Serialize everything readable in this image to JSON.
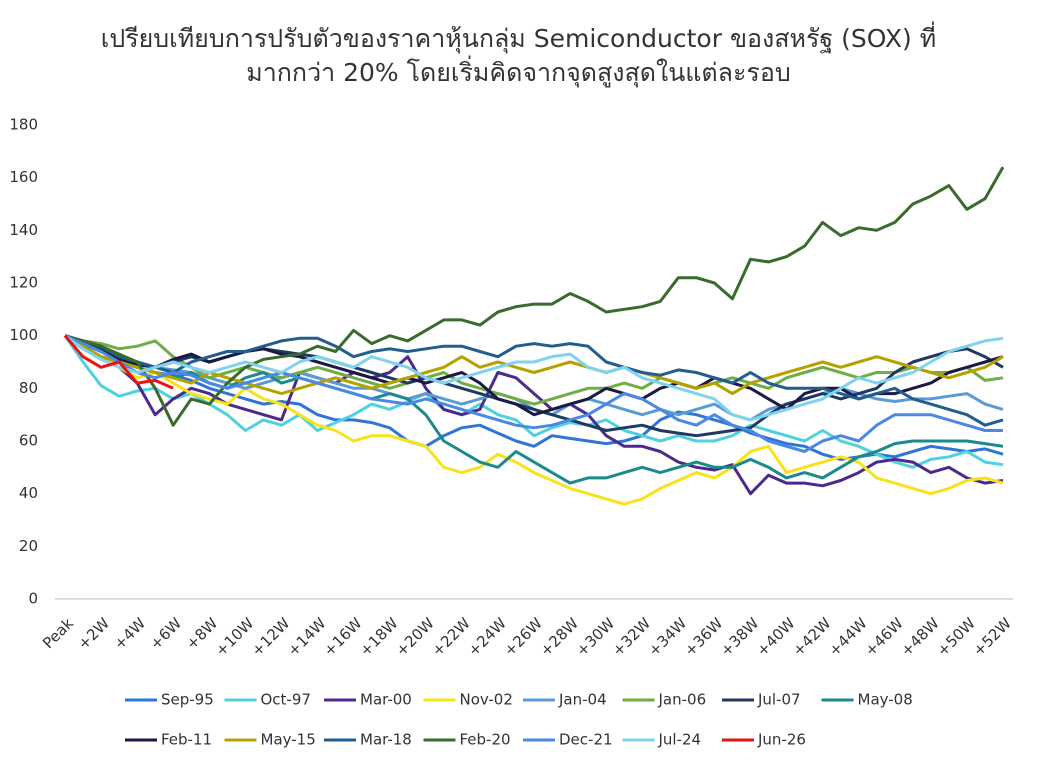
{
  "chart_data": {
    "type": "line",
    "title": "เปรียบเทียบการปรับตัวของราคาหุ้นกลุ่ม Semiconductor ของสหรัฐ (SOX) ที่\nมากกว่า 20% โดยเริ่มคิดจากจุดสูงสุดในแต่ละรอบ",
    "categories": [
      "Peak",
      null,
      "+2W",
      null,
      "+4W",
      null,
      "+6W",
      null,
      "+8W",
      null,
      "+10W",
      null,
      "+12W",
      null,
      "+14W",
      null,
      "+16W",
      null,
      "+18W",
      null,
      "+20W",
      null,
      "+22W",
      null,
      "+24W",
      null,
      "+26W",
      null,
      "+28W",
      null,
      "+30W",
      null,
      "+32W",
      null,
      "+34W",
      null,
      "+36W",
      null,
      "+38W",
      null,
      "+40W",
      null,
      "+42W",
      null,
      "+44W",
      null,
      "+46W",
      null,
      "+48W",
      null,
      "+50W",
      null,
      "+52W"
    ],
    "ylim": [
      0,
      180
    ],
    "yticks": [
      0,
      20,
      40,
      60,
      80,
      100,
      120,
      140,
      160,
      180
    ],
    "grid": false,
    "legend": "bottom",
    "series": [
      {
        "name": "Sep-95",
        "color": "#2f75d6",
        "values": [
          100,
          97,
          94,
          90,
          88,
          86,
          85,
          83,
          80,
          78,
          76,
          74,
          75,
          74,
          70,
          68,
          68,
          67,
          65,
          60,
          58,
          62,
          65,
          66,
          63,
          60,
          58,
          62,
          61,
          60,
          59,
          60,
          62,
          68,
          71,
          70,
          68,
          66,
          63,
          61,
          59,
          58,
          55,
          53,
          54,
          55,
          54,
          56,
          58,
          57,
          56,
          57,
          55
        ]
      },
      {
        "name": "Oct-97",
        "color": "#4fd1e0",
        "values": [
          100,
          90,
          81,
          77,
          79,
          80,
          76,
          78,
          74,
          70,
          64,
          68,
          66,
          70,
          64,
          67,
          70,
          74,
          72,
          75,
          78,
          72,
          70,
          74,
          70,
          68,
          62,
          65,
          67,
          66,
          68,
          64,
          62,
          60,
          62,
          60,
          60,
          62,
          66,
          64,
          62,
          60,
          64,
          60,
          58,
          55,
          52,
          50,
          53,
          54,
          56,
          52,
          51
        ]
      },
      {
        "name": "Mar-00",
        "color": "#4b2a8c",
        "values": [
          100,
          95,
          92,
          88,
          82,
          70,
          76,
          80,
          78,
          74,
          72,
          70,
          68,
          86,
          84,
          82,
          86,
          84,
          86,
          92,
          80,
          72,
          70,
          72,
          86,
          84,
          78,
          72,
          74,
          70,
          62,
          58,
          58,
          56,
          52,
          50,
          49,
          51,
          40,
          47,
          44,
          44,
          43,
          45,
          48,
          52,
          53,
          52,
          48,
          50,
          46,
          44,
          45
        ]
      },
      {
        "name": "Nov-02",
        "color": "#f7e21b",
        "values": [
          100,
          96,
          92,
          88,
          84,
          86,
          82,
          78,
          76,
          74,
          80,
          76,
          74,
          70,
          66,
          64,
          60,
          62,
          62,
          60,
          58,
          50,
          48,
          50,
          55,
          52,
          48,
          45,
          42,
          40,
          38,
          36,
          38,
          42,
          45,
          48,
          46,
          50,
          56,
          58,
          48,
          50,
          52,
          54,
          52,
          46,
          44,
          42,
          40,
          42,
          45,
          46,
          44
        ]
      },
      {
        "name": "Jan-04",
        "color": "#5b9bd5",
        "values": [
          100,
          97,
          94,
          92,
          90,
          88,
          87,
          86,
          84,
          82,
          80,
          82,
          84,
          86,
          84,
          82,
          80,
          80,
          78,
          76,
          78,
          76,
          74,
          76,
          78,
          76,
          72,
          70,
          74,
          76,
          74,
          72,
          70,
          72,
          70,
          72,
          74,
          70,
          68,
          72,
          74,
          76,
          78,
          80,
          78,
          76,
          75,
          76,
          76,
          77,
          78,
          74,
          72
        ]
      },
      {
        "name": "Jan-06",
        "color": "#70ad47",
        "values": [
          100,
          98,
          97,
          95,
          96,
          98,
          92,
          88,
          84,
          86,
          88,
          86,
          84,
          86,
          88,
          86,
          84,
          82,
          80,
          82,
          84,
          86,
          82,
          80,
          78,
          76,
          74,
          76,
          78,
          80,
          80,
          82,
          80,
          84,
          82,
          80,
          82,
          84,
          82,
          80,
          84,
          86,
          88,
          86,
          84,
          86,
          86,
          88,
          86,
          86,
          88,
          83,
          84
        ]
      },
      {
        "name": "Jul-07",
        "color": "#1f3864",
        "values": [
          100,
          98,
          95,
          92,
          90,
          88,
          90,
          92,
          90,
          92,
          94,
          95,
          94,
          93,
          92,
          90,
          88,
          86,
          84,
          82,
          84,
          82,
          80,
          78,
          76,
          74,
          72,
          70,
          68,
          66,
          64,
          65,
          66,
          64,
          63,
          62,
          63,
          64,
          65,
          70,
          74,
          76,
          78,
          76,
          78,
          80,
          86,
          90,
          92,
          94,
          95,
          92,
          88
        ]
      },
      {
        "name": "May-08",
        "color": "#1a8a8c",
        "values": [
          100,
          96,
          92,
          90,
          88,
          86,
          84,
          86,
          82,
          80,
          84,
          86,
          82,
          84,
          82,
          80,
          78,
          76,
          78,
          76,
          70,
          60,
          56,
          52,
          50,
          56,
          52,
          48,
          44,
          46,
          46,
          48,
          50,
          48,
          50,
          52,
          50,
          50,
          53,
          50,
          46,
          48,
          46,
          50,
          54,
          56,
          59,
          60,
          60,
          60,
          60,
          59,
          58
        ]
      },
      {
        "name": "Feb-11",
        "color": "#1c1a45",
        "values": [
          100,
          97,
          94,
          91,
          89,
          88,
          91,
          93,
          90,
          92,
          94,
          95,
          93,
          92,
          90,
          88,
          86,
          84,
          82,
          84,
          82,
          84,
          86,
          82,
          76,
          74,
          70,
          72,
          74,
          76,
          80,
          78,
          76,
          80,
          82,
          80,
          84,
          82,
          80,
          76,
          72,
          78,
          80,
          80,
          76,
          78,
          78,
          80,
          82,
          86,
          88,
          90,
          92
        ]
      },
      {
        "name": "May-15",
        "color": "#b3a200",
        "values": [
          100,
          96,
          92,
          90,
          88,
          86,
          84,
          82,
          86,
          84,
          82,
          80,
          78,
          80,
          82,
          84,
          82,
          80,
          82,
          84,
          86,
          88,
          92,
          88,
          90,
          88,
          86,
          88,
          90,
          88,
          86,
          88,
          86,
          84,
          82,
          80,
          82,
          78,
          82,
          84,
          86,
          88,
          90,
          88,
          90,
          92,
          90,
          88,
          86,
          84,
          86,
          88,
          92
        ]
      },
      {
        "name": "Mar-18",
        "color": "#215e8e",
        "values": [
          100,
          98,
          96,
          92,
          90,
          88,
          86,
          90,
          92,
          94,
          94,
          96,
          98,
          99,
          99,
          96,
          92,
          94,
          95,
          94,
          95,
          96,
          96,
          94,
          92,
          96,
          97,
          96,
          97,
          96,
          90,
          88,
          86,
          85,
          87,
          86,
          84,
          82,
          86,
          82,
          80,
          80,
          80,
          78,
          76,
          78,
          80,
          76,
          74,
          72,
          70,
          66,
          68
        ]
      },
      {
        "name": "Feb-20",
        "color": "#386b2c",
        "values": [
          100,
          98,
          96,
          93,
          90,
          80,
          66,
          76,
          74,
          82,
          88,
          91,
          92,
          93,
          96,
          94,
          102,
          97,
          100,
          98,
          102,
          106,
          106,
          104,
          109,
          111,
          112,
          112,
          116,
          113,
          109,
          110,
          111,
          113,
          122,
          122,
          120,
          114,
          129,
          128,
          130,
          134,
          143,
          138,
          141,
          140,
          143,
          150,
          153,
          157,
          148,
          152,
          164
        ]
      },
      {
        "name": "Dec-21",
        "color": "#4a88e6",
        "values": [
          100,
          97,
          94,
          90,
          86,
          84,
          86,
          85,
          82,
          80,
          82,
          84,
          86,
          84,
          82,
          80,
          78,
          76,
          75,
          74,
          76,
          74,
          72,
          70,
          68,
          66,
          65,
          66,
          68,
          70,
          74,
          78,
          76,
          72,
          68,
          66,
          70,
          66,
          64,
          60,
          58,
          56,
          60,
          62,
          60,
          66,
          70,
          70,
          70,
          68,
          66,
          64,
          64
        ]
      },
      {
        "name": "Jul-24",
        "color": "#7fd3ef",
        "values": [
          100,
          95,
          91,
          88,
          86,
          88,
          90,
          88,
          86,
          88,
          90,
          88,
          86,
          90,
          92,
          90,
          88,
          92,
          90,
          88,
          84,
          82,
          84,
          86,
          88,
          90,
          90,
          92,
          93,
          88,
          86,
          88,
          84,
          82,
          80,
          78,
          76,
          70,
          68,
          70,
          72,
          74,
          76,
          80,
          84,
          82,
          84,
          86,
          90,
          94,
          96,
          98,
          99
        ]
      },
      {
        "name": "Jun-26",
        "color": "#ee1111",
        "values": [
          100,
          92,
          88,
          90,
          82,
          83,
          80,
          null,
          null,
          null,
          null,
          null,
          null,
          null,
          null,
          null,
          null,
          null,
          null,
          null,
          null,
          null,
          null,
          null,
          null,
          null,
          null,
          null,
          null,
          null,
          null,
          null,
          null,
          null,
          null,
          null,
          null,
          null,
          null,
          null,
          null,
          null,
          null,
          null,
          null,
          null,
          null,
          null,
          null,
          null,
          null,
          null,
          null
        ]
      }
    ]
  }
}
